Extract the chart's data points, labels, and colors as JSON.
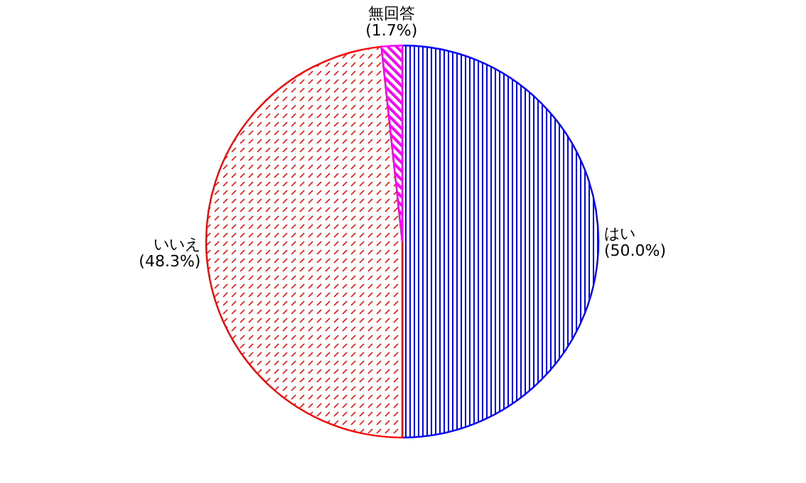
{
  "chart_data": {
    "type": "pie",
    "categories": [
      "はい",
      "いいえ",
      "無回答"
    ],
    "values": [
      50.0,
      48.3,
      1.7
    ],
    "value_labels": [
      "(50.0%)",
      "(48.3%)",
      "(1.7%)"
    ],
    "colors": [
      "#0000ff",
      "#ff0000",
      "#ff00ff"
    ]
  }
}
